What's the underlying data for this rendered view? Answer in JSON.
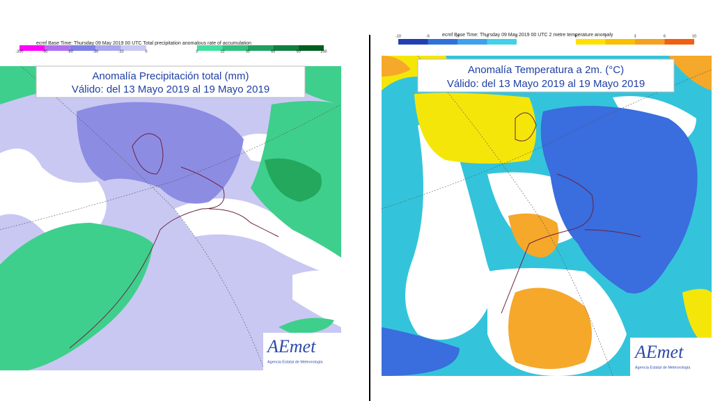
{
  "panels": [
    {
      "header": "ecmf  Base Time: Thursday 09 May 2019 00 UTC Total precipitation anomalous rate of accumulation",
      "legend_left": [
        "-200",
        "-90",
        "-60",
        "-30",
        "-10",
        "0"
      ],
      "legend_right": [
        "0",
        "10",
        "30",
        "60",
        "90",
        "200"
      ],
      "title": "Anomalía Precipitación total (mm)",
      "subtitle": "Válido: del 13 Mayo 2019 al 19 Mayo 2019",
      "logo": "AEmet",
      "logo_text": "Agencia Estatal de Meteorología"
    },
    {
      "header": "ecmf  Base Time: Thursday 09 May 2019 00 UTC 2 metre temperature anomaly",
      "legend_left": [
        "-10",
        "-5",
        "-3",
        "-1",
        "0"
      ],
      "legend_right": [
        "0",
        "1",
        "3",
        "6",
        "10"
      ],
      "title": "Anomalía Temperatura a 2m. (°C)",
      "subtitle": "Válido: del 13 Mayo 2019 al 19 Mayo 2019",
      "logo": "AEmet",
      "logo_text": "Agencia Estatal de Meteorología"
    }
  ]
}
